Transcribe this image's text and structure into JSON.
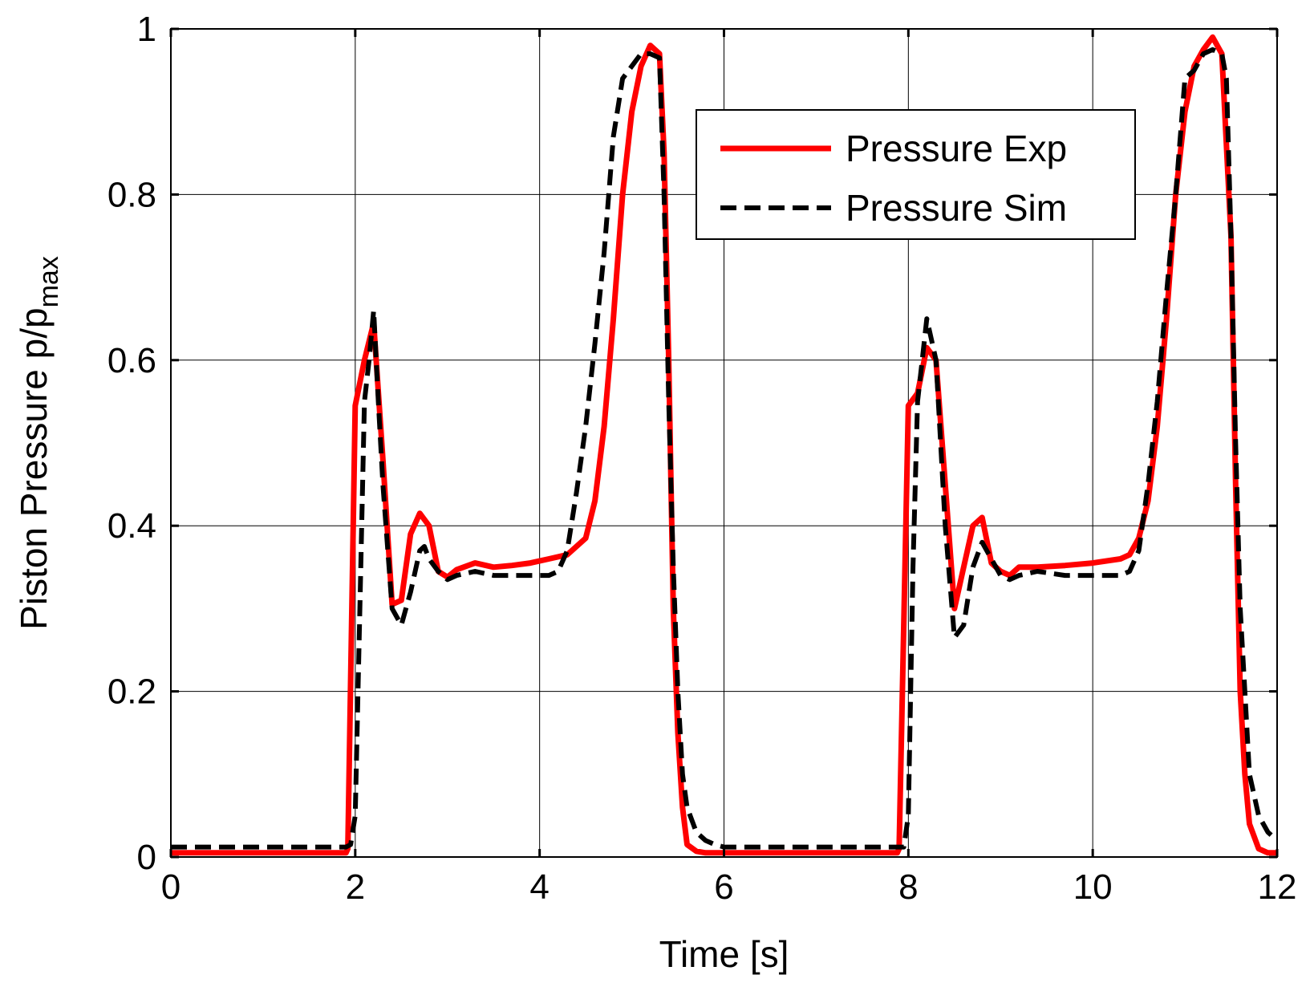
{
  "chart_data": {
    "type": "line",
    "title": "",
    "xlabel": "Time [s]",
    "ylabel": {
      "main": "Piston Pressure p/p",
      "subscript": "max"
    },
    "xlim": [
      0,
      12
    ],
    "ylim": [
      0,
      1
    ],
    "xticks": [
      0,
      2,
      4,
      6,
      8,
      10,
      12
    ],
    "yticks": [
      0,
      0.2,
      0.4,
      0.6,
      0.8,
      1
    ],
    "xtick_labels": [
      "0",
      "2",
      "4",
      "6",
      "8",
      "10",
      "12"
    ],
    "ytick_labels": [
      "0",
      "0.2",
      "0.4",
      "0.6",
      "0.8",
      "1"
    ],
    "grid": true,
    "legend_position": "top-right",
    "series": [
      {
        "name": "Pressure Exp",
        "color": "#ff0000",
        "style": "solid",
        "x": [
          0,
          1.9,
          1.92,
          2.0,
          2.1,
          2.2,
          2.3,
          2.4,
          2.5,
          2.6,
          2.7,
          2.8,
          2.9,
          3.0,
          3.1,
          3.3,
          3.5,
          3.7,
          3.9,
          4.1,
          4.3,
          4.5,
          4.6,
          4.7,
          4.8,
          4.9,
          5.0,
          5.1,
          5.2,
          5.3,
          5.35,
          5.4,
          5.45,
          5.5,
          5.55,
          5.6,
          5.7,
          5.8,
          5.9,
          7.88,
          7.9,
          8.0,
          8.1,
          8.2,
          8.3,
          8.4,
          8.5,
          8.6,
          8.7,
          8.8,
          8.9,
          9.0,
          9.1,
          9.2,
          9.4,
          9.7,
          10.0,
          10.3,
          10.4,
          10.5,
          10.6,
          10.7,
          10.8,
          10.9,
          11.0,
          11.1,
          11.2,
          11.3,
          11.4,
          11.5,
          11.55,
          11.6,
          11.65,
          11.7,
          11.8,
          11.9,
          12.0
        ],
        "y": [
          0.005,
          0.005,
          0.01,
          0.545,
          0.6,
          0.645,
          0.48,
          0.305,
          0.31,
          0.39,
          0.415,
          0.4,
          0.345,
          0.338,
          0.347,
          0.355,
          0.35,
          0.352,
          0.355,
          0.36,
          0.365,
          0.385,
          0.43,
          0.52,
          0.65,
          0.8,
          0.9,
          0.955,
          0.98,
          0.97,
          0.85,
          0.6,
          0.3,
          0.15,
          0.06,
          0.015,
          0.007,
          0.005,
          0.005,
          0.005,
          0.01,
          0.545,
          0.56,
          0.615,
          0.6,
          0.45,
          0.3,
          0.35,
          0.4,
          0.41,
          0.355,
          0.345,
          0.34,
          0.35,
          0.35,
          0.352,
          0.355,
          0.36,
          0.365,
          0.385,
          0.43,
          0.52,
          0.65,
          0.8,
          0.9,
          0.955,
          0.975,
          0.99,
          0.97,
          0.75,
          0.45,
          0.2,
          0.1,
          0.04,
          0.01,
          0.005,
          0.005
        ]
      },
      {
        "name": "Pressure Sim",
        "color": "#000000",
        "style": "dashed",
        "x": [
          0,
          1.9,
          1.95,
          2.0,
          2.05,
          2.1,
          2.15,
          2.2,
          2.25,
          2.3,
          2.4,
          2.5,
          2.55,
          2.6,
          2.7,
          2.75,
          2.8,
          2.9,
          3.0,
          3.1,
          3.3,
          3.5,
          3.7,
          3.9,
          4.1,
          4.2,
          4.3,
          4.4,
          4.5,
          4.6,
          4.7,
          4.8,
          4.9,
          5.0,
          5.1,
          5.2,
          5.3,
          5.35,
          5.4,
          5.45,
          5.5,
          5.55,
          5.6,
          5.7,
          5.8,
          5.9,
          6.0,
          7.95,
          8.0,
          8.05,
          8.1,
          8.15,
          8.2,
          8.3,
          8.4,
          8.5,
          8.6,
          8.7,
          8.8,
          8.9,
          9.0,
          9.1,
          9.2,
          9.4,
          9.7,
          10.0,
          10.3,
          10.4,
          10.5,
          10.6,
          10.7,
          10.8,
          10.9,
          11.0,
          11.1,
          11.2,
          11.3,
          11.4,
          11.45,
          11.5,
          11.55,
          11.6,
          11.65,
          11.7,
          11.8,
          11.9,
          12.0
        ],
        "y": [
          0.012,
          0.012,
          0.015,
          0.05,
          0.3,
          0.55,
          0.6,
          0.66,
          0.55,
          0.45,
          0.3,
          0.28,
          0.3,
          0.32,
          0.37,
          0.375,
          0.36,
          0.345,
          0.335,
          0.34,
          0.345,
          0.34,
          0.34,
          0.34,
          0.34,
          0.345,
          0.37,
          0.44,
          0.52,
          0.62,
          0.73,
          0.87,
          0.94,
          0.955,
          0.97,
          0.97,
          0.965,
          0.8,
          0.55,
          0.35,
          0.2,
          0.1,
          0.06,
          0.03,
          0.02,
          0.015,
          0.012,
          0.012,
          0.05,
          0.35,
          0.55,
          0.6,
          0.65,
          0.6,
          0.4,
          0.265,
          0.28,
          0.35,
          0.38,
          0.36,
          0.34,
          0.335,
          0.34,
          0.345,
          0.34,
          0.34,
          0.34,
          0.345,
          0.37,
          0.45,
          0.55,
          0.68,
          0.8,
          0.94,
          0.95,
          0.97,
          0.975,
          0.97,
          0.94,
          0.75,
          0.5,
          0.3,
          0.2,
          0.1,
          0.05,
          0.03,
          0.02
        ]
      }
    ]
  }
}
